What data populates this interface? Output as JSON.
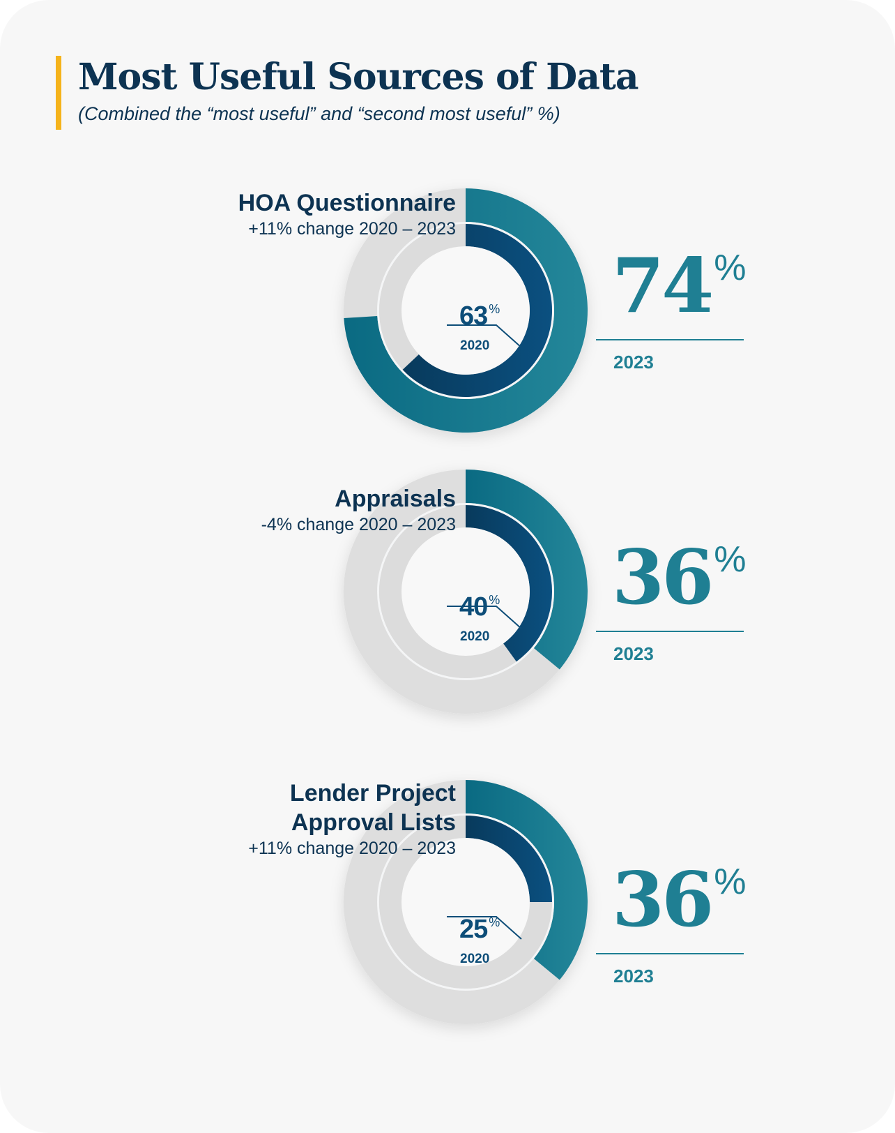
{
  "header": {
    "title": "Most Useful Sources of Data",
    "subtitle": "(Combined the “most useful” and “second most useful” %)"
  },
  "colors": {
    "accent": "#f5b31b",
    "navy": "#0d3352",
    "teal": "#1f7f93",
    "inner_blue": "#0d4d78",
    "track": "#dedede"
  },
  "chart_data": {
    "type": "donut",
    "title": "Most Useful Sources of Data",
    "subtitle": "(Combined the “most useful” and “second most useful” %)",
    "series_names": [
      "2023",
      "2020"
    ],
    "items": [
      {
        "name": "HOA Questionnaire",
        "change": "+11% change 2020 – 2023",
        "value_2023": 74,
        "value_2020": 63,
        "label_2023": "74",
        "label_2020": "63",
        "pct": "%",
        "year_2023": "2023",
        "year_2020": "2020"
      },
      {
        "name": "Appraisals",
        "change": "-4% change 2020 – 2023",
        "value_2023": 36,
        "value_2020": 40,
        "label_2023": "36",
        "label_2020": "40",
        "pct": "%",
        "year_2023": "2023",
        "year_2020": "2020"
      },
      {
        "name": "Lender Project Approval Lists",
        "name_lines": [
          "Lender Project",
          "Approval Lists"
        ],
        "change": "+11% change 2020 – 2023",
        "value_2023": 36,
        "value_2020": 25,
        "label_2023": "36",
        "label_2020": "25",
        "pct": "%",
        "year_2023": "2023",
        "year_2020": "2020"
      }
    ]
  }
}
